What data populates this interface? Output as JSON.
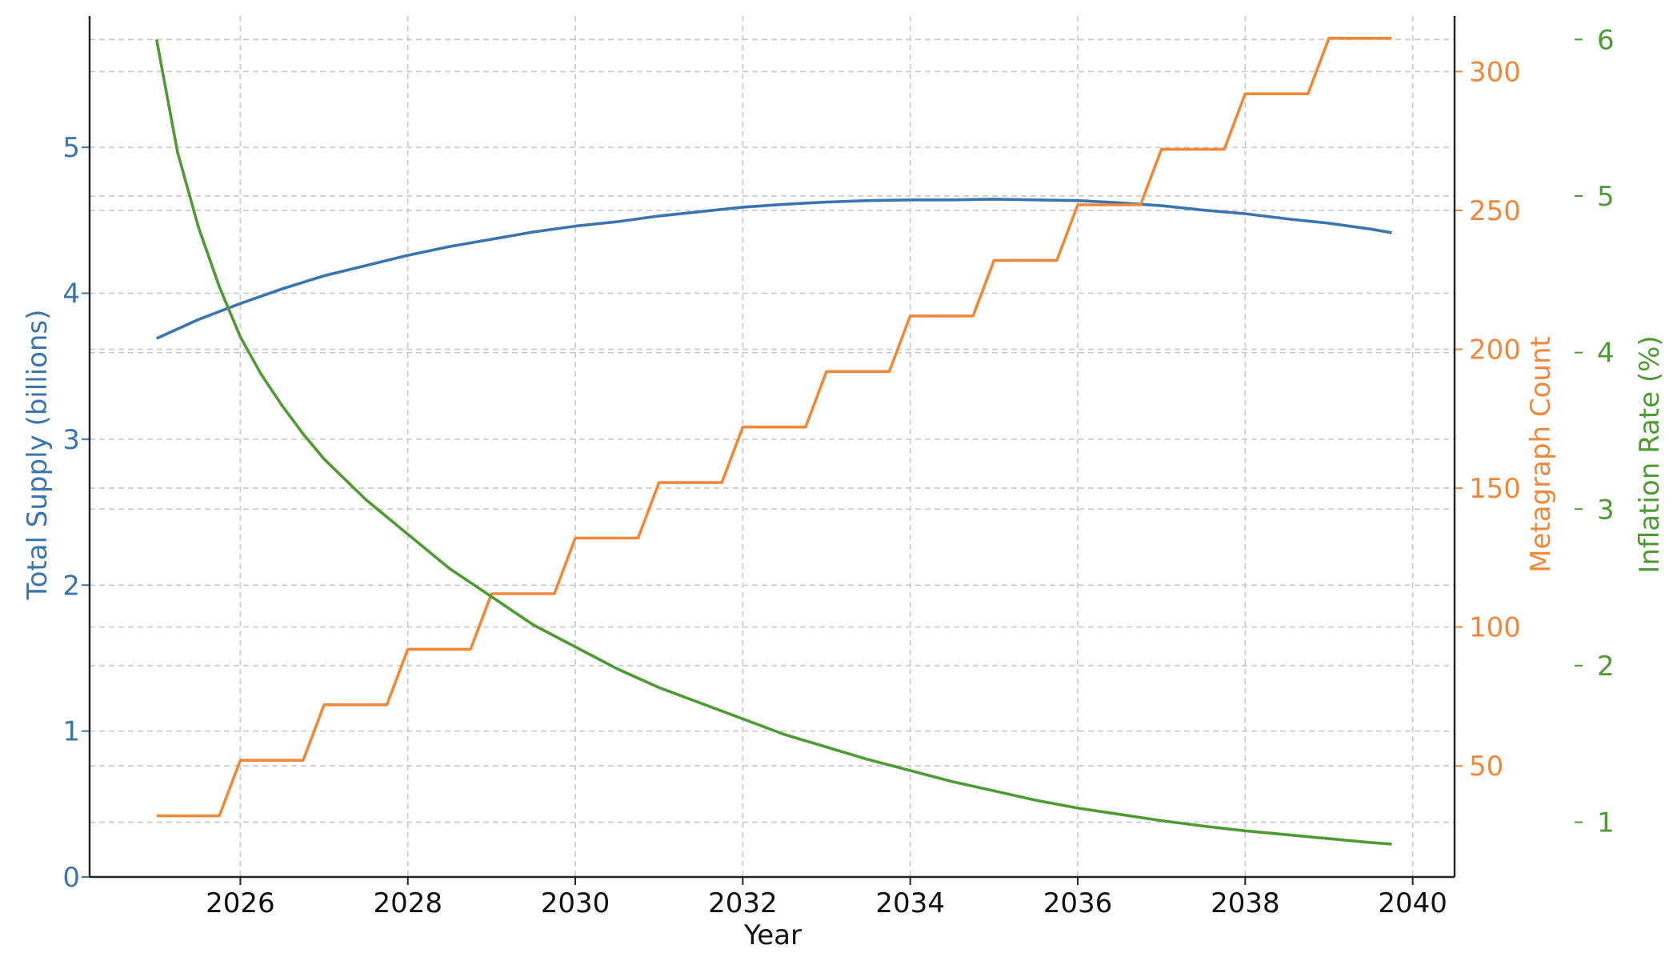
{
  "chart_data": {
    "type": "line",
    "xlabel": "Year",
    "x_ticks": [
      "2026",
      "2028",
      "2030",
      "2032",
      "2034",
      "2036",
      "2038",
      "2040"
    ],
    "xlim": [
      2024.2,
      2040.5
    ],
    "grid": true,
    "axes": {
      "left": {
        "label": "Total Supply (billions)",
        "color": "#3a75b0",
        "ylim": [
          0,
          5.9
        ],
        "ticks": [
          "0",
          "1",
          "2",
          "3",
          "4",
          "5"
        ]
      },
      "right1": {
        "label": "Metagraph Count",
        "color": "#f0883a",
        "ylim": [
          10,
          320
        ],
        "ticks": [
          "50",
          "100",
          "150",
          "200",
          "250",
          "300"
        ]
      },
      "right2": {
        "label": "Inflation Rate (%)",
        "color": "#4e9a33",
        "ylim": [
          0.65,
          6.15
        ],
        "ticks": [
          "1",
          "2",
          "3",
          "4",
          "5",
          "6"
        ]
      }
    },
    "series": [
      {
        "name": "Total Supply (billions)",
        "axis": "left",
        "color": "#3a75b0",
        "step": false,
        "x": [
          2025.0,
          2025.5,
          2026.0,
          2026.5,
          2027.0,
          2027.5,
          2028.0,
          2028.5,
          2029.0,
          2029.5,
          2030.0,
          2030.5,
          2031.0,
          2031.5,
          2032.0,
          2032.5,
          2033.0,
          2033.5,
          2034.0,
          2034.5,
          2035.0,
          2035.5,
          2036.0,
          2036.5,
          2037.0,
          2037.5,
          2038.0,
          2038.5,
          2039.0,
          2039.5,
          2039.75
        ],
        "y": [
          3.69,
          3.82,
          3.93,
          4.03,
          4.12,
          4.19,
          4.26,
          4.32,
          4.37,
          4.42,
          4.46,
          4.49,
          4.53,
          4.56,
          4.59,
          4.61,
          4.625,
          4.635,
          4.64,
          4.64,
          4.645,
          4.64,
          4.635,
          4.62,
          4.6,
          4.57,
          4.545,
          4.51,
          4.48,
          4.44,
          4.415
        ]
      },
      {
        "name": "Metagraph Count",
        "axis": "right1",
        "color": "#f0883a",
        "step": true,
        "x": [
          2025.0,
          2025.75,
          2026.0,
          2026.75,
          2027.0,
          2027.75,
          2028.0,
          2028.75,
          2029.0,
          2029.75,
          2030.0,
          2030.75,
          2031.0,
          2031.75,
          2032.0,
          2032.75,
          2033.0,
          2033.75,
          2034.0,
          2034.75,
          2035.0,
          2035.75,
          2036.0,
          2036.75,
          2037.0,
          2037.75,
          2038.0,
          2038.75,
          2039.0,
          2039.75
        ],
        "y": [
          32,
          32,
          52,
          52,
          72,
          72,
          92,
          92,
          112,
          112,
          132,
          132,
          152,
          152,
          172,
          172,
          192,
          192,
          212,
          212,
          232,
          232,
          252,
          252,
          272,
          272,
          292,
          292,
          312,
          312
        ]
      },
      {
        "name": "Inflation Rate (%)",
        "axis": "right2",
        "color": "#4e9a33",
        "step": false,
        "x": [
          2025.0,
          2025.25,
          2025.5,
          2025.75,
          2026.0,
          2026.25,
          2026.5,
          2026.75,
          2027.0,
          2027.5,
          2028.0,
          2028.5,
          2029.0,
          2029.5,
          2030.0,
          2030.5,
          2031.0,
          2031.5,
          2032.0,
          2032.5,
          2033.0,
          2033.5,
          2034.0,
          2034.5,
          2035.0,
          2035.5,
          2036.0,
          2036.5,
          2037.0,
          2037.5,
          2038.0,
          2038.5,
          2039.0,
          2039.5,
          2039.75
        ],
        "y": [
          6.0,
          5.28,
          4.8,
          4.42,
          4.1,
          3.86,
          3.66,
          3.48,
          3.32,
          3.06,
          2.84,
          2.62,
          2.44,
          2.26,
          2.12,
          1.98,
          1.86,
          1.76,
          1.66,
          1.56,
          1.48,
          1.4,
          1.33,
          1.26,
          1.2,
          1.14,
          1.09,
          1.05,
          1.01,
          0.975,
          0.945,
          0.92,
          0.895,
          0.87,
          0.86
        ]
      }
    ]
  }
}
